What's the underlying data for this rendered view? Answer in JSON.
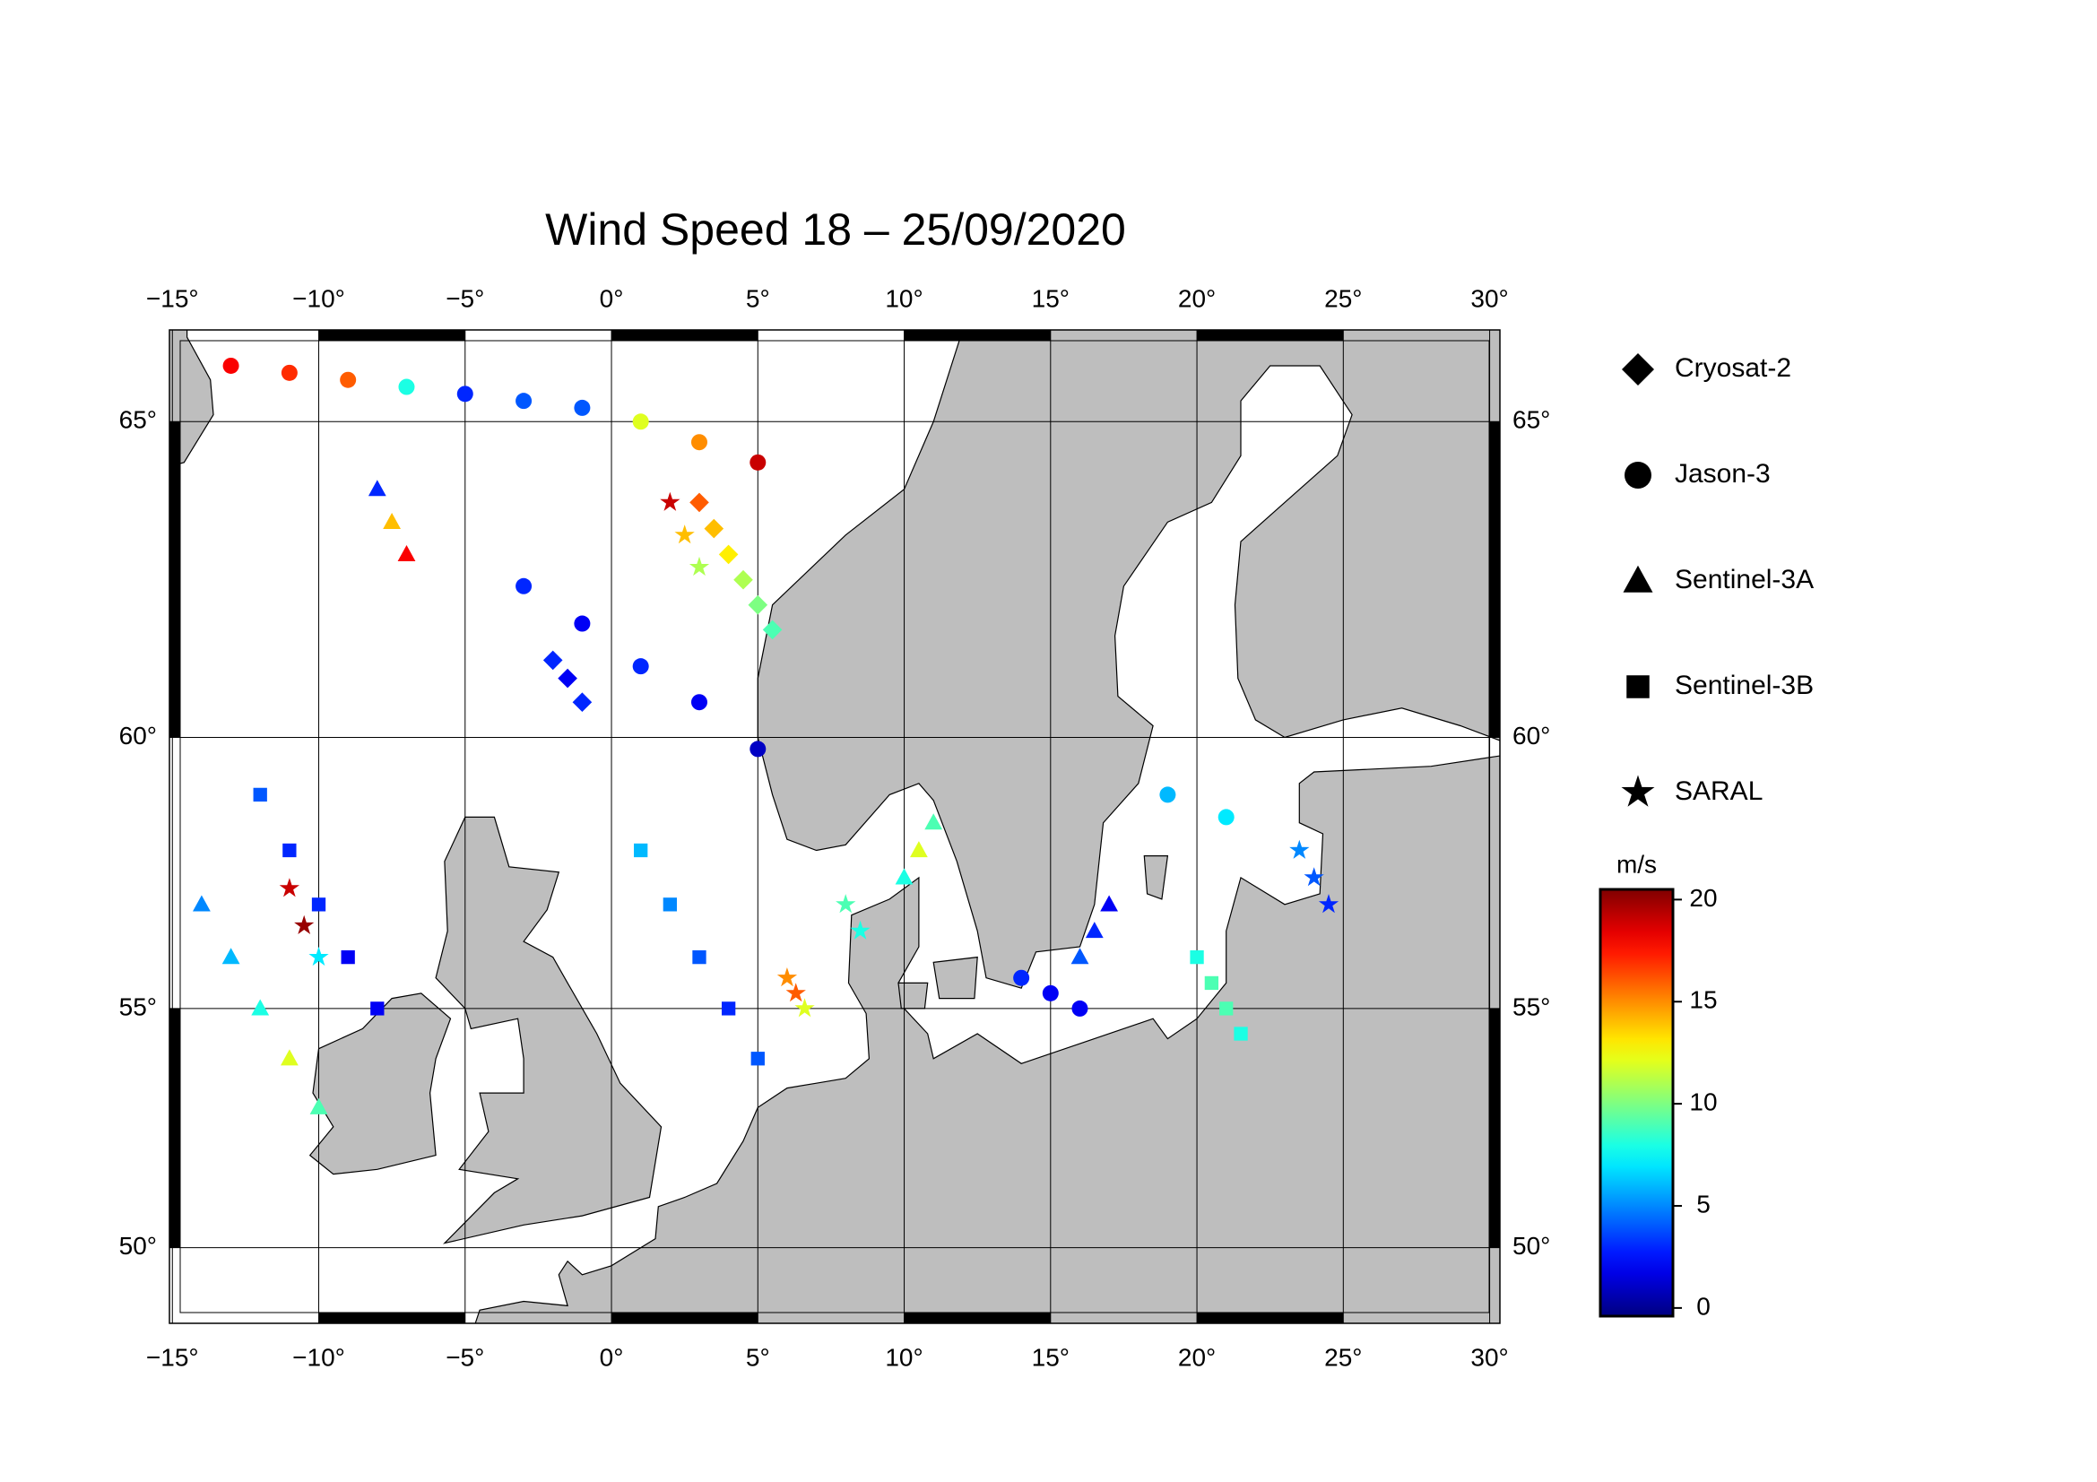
{
  "chart_data": {
    "type": "scatter",
    "title": "Wind Speed 18 – 25/09/2020",
    "projection": "mercator",
    "xlim": [
      -15.1,
      30.35
    ],
    "ylim": [
      48.3,
      66.3
    ],
    "xticks": [
      {
        "value": -15,
        "label": "−15°"
      },
      {
        "value": -10,
        "label": "−10°"
      },
      {
        "value": -5,
        "label": "−5°"
      },
      {
        "value": 0,
        "label": "0°"
      },
      {
        "value": 5,
        "label": "5°"
      },
      {
        "value": 10,
        "label": "10°"
      },
      {
        "value": 15,
        "label": "15°"
      },
      {
        "value": 20,
        "label": "20°"
      },
      {
        "value": 25,
        "label": "25°"
      },
      {
        "value": 30,
        "label": "30°"
      }
    ],
    "yticks": [
      {
        "value": 50,
        "label": "50°"
      },
      {
        "value": 55,
        "label": "55°"
      },
      {
        "value": 60,
        "label": "60°"
      },
      {
        "value": 65,
        "label": "65°"
      }
    ],
    "grid": true,
    "colorbar": {
      "label": "m/s",
      "colormap": "jet",
      "lim": [
        -0.4,
        20.5
      ],
      "ticks": [
        0,
        5,
        10,
        15,
        20
      ]
    },
    "series": [
      {
        "name": "Cryosat-2",
        "marker": "diamond",
        "x": [
          3,
          3.5,
          4,
          4.5,
          5,
          5.5,
          -2,
          -1.5,
          -1
        ],
        "y": [
          63.8,
          63.4,
          63,
          62.6,
          62.2,
          61.8,
          61.3,
          61.0,
          60.6
        ],
        "values": [
          16,
          14,
          13,
          11,
          10,
          9,
          3,
          2,
          3
        ]
      },
      {
        "name": "Jason-3",
        "marker": "circle",
        "x": [
          -13,
          -11,
          -9,
          -7,
          -5,
          -3,
          -1,
          1,
          3,
          5,
          -3,
          -1,
          1,
          3,
          5,
          14,
          15,
          16,
          19,
          21
        ],
        "y": [
          65.8,
          65.7,
          65.6,
          65.5,
          65.4,
          65.3,
          65.2,
          65.0,
          64.7,
          64.4,
          62.5,
          61.9,
          61.2,
          60.6,
          59.8,
          55.6,
          55.3,
          55.0,
          59.0,
          58.6
        ],
        "values": [
          18,
          17,
          16,
          8,
          3,
          4,
          4,
          12,
          15,
          19,
          3,
          2,
          3,
          2,
          1,
          3,
          2,
          2,
          6,
          7
        ]
      },
      {
        "name": "Sentinel-3A",
        "marker": "triangle",
        "x": [
          -14,
          -13,
          -12,
          -11,
          -10,
          -8,
          -7.5,
          -7,
          11,
          10.5,
          10,
          17,
          16.5,
          16
        ],
        "y": [
          57,
          56,
          55,
          54,
          53,
          64,
          63.5,
          63,
          58.5,
          58,
          57.5,
          57,
          56.5,
          56
        ],
        "values": [
          5,
          6,
          8,
          12,
          9,
          3,
          14,
          18,
          9,
          12,
          8,
          2,
          3,
          4
        ]
      },
      {
        "name": "Sentinel-3B",
        "marker": "square",
        "x": [
          -12,
          -11,
          -10,
          -9,
          -8,
          1,
          2,
          3,
          4,
          5,
          20,
          20.5,
          21,
          21.5
        ],
        "y": [
          59,
          58,
          57,
          56,
          55,
          58,
          57,
          56,
          55,
          54,
          56,
          55.5,
          55,
          54.5
        ],
        "values": [
          4,
          3,
          3,
          2,
          2,
          6,
          5,
          4,
          3,
          4,
          8,
          9,
          9,
          8
        ]
      },
      {
        "name": "SARAL",
        "marker": "star",
        "x": [
          -11,
          -10.5,
          -10,
          2,
          2.5,
          3,
          6,
          6.3,
          6.6,
          23.5,
          24,
          24.5,
          8,
          8.5
        ],
        "y": [
          57.3,
          56.6,
          56,
          63.8,
          63.3,
          62.8,
          55.6,
          55.3,
          55.0,
          58,
          57.5,
          57,
          57,
          56.5
        ],
        "values": [
          19,
          20,
          7,
          19,
          14,
          11,
          15,
          16,
          12,
          5,
          4,
          3,
          9,
          8
        ]
      }
    ]
  }
}
